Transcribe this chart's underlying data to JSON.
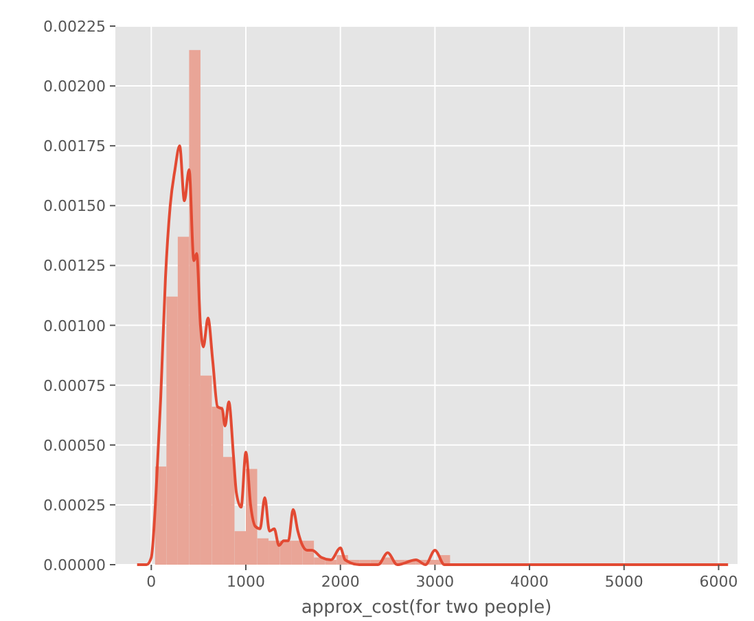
{
  "chart_data": {
    "type": "histogram",
    "xlabel": "approx_cost(for two people)",
    "grid": true,
    "xlim": [
      -380,
      6200
    ],
    "ylim": [
      0,
      0.00225
    ],
    "xticks": [
      0,
      1000,
      2000,
      3000,
      4000,
      5000,
      6000
    ],
    "yticks": [
      {
        "value": 0,
        "label": "0.00000"
      },
      {
        "value": 0.00025,
        "label": "0.00025"
      },
      {
        "value": 0.0005,
        "label": "0.00050"
      },
      {
        "value": 0.00075,
        "label": "0.00075"
      },
      {
        "value": 0.001,
        "label": "0.00100"
      },
      {
        "value": 0.00125,
        "label": "0.00125"
      },
      {
        "value": 0.0015,
        "label": "0.00150"
      },
      {
        "value": 0.00175,
        "label": "0.00175"
      },
      {
        "value": 0.002,
        "label": "0.00200"
      },
      {
        "value": 0.00225,
        "label": "0.00225"
      }
    ],
    "series": [
      {
        "color": "#e9a597",
        "bins": [
          40,
          160,
          280,
          400,
          520,
          640,
          760,
          880,
          1000,
          1120,
          1240,
          1360,
          1480,
          1600,
          1720,
          1840,
          1960,
          2080,
          2200,
          2320,
          2440,
          2560,
          2680,
          2800,
          2920,
          3040,
          3160,
          3280,
          3400,
          3520,
          3640,
          3760,
          3880,
          4000,
          4120,
          4240,
          4360,
          4480,
          4600,
          4720,
          4840,
          4960,
          5080,
          5200,
          5320,
          5440,
          5560,
          5680,
          5800,
          5920,
          6040
        ],
        "values": [
          0.00041,
          0.00112,
          0.00137,
          0.00215,
          0.00079,
          0.00066,
          0.00045,
          0.00014,
          0.0004,
          0.00011,
          0.0001,
          0.0001,
          0.0001,
          0.0001,
          3e-05,
          2e-05,
          4e-05,
          2e-05,
          2e-05,
          2e-05,
          3e-05,
          2e-05,
          2e-05,
          2e-05,
          2e-05,
          4e-05,
          0,
          0,
          0,
          0,
          0,
          0,
          0,
          0,
          0,
          0,
          0,
          0,
          0,
          0,
          0,
          0,
          0,
          0,
          0,
          0,
          0,
          0,
          0,
          0
        ]
      },
      {
        "type": "line",
        "color": "#e24a33",
        "x": [
          -150,
          -50,
          0,
          50,
          100,
          150,
          200,
          250,
          300,
          350,
          400,
          450,
          480,
          520,
          550,
          600,
          650,
          700,
          750,
          780,
          820,
          870,
          900,
          950,
          1000,
          1050,
          1100,
          1150,
          1200,
          1250,
          1300,
          1350,
          1400,
          1450,
          1500,
          1550,
          1600,
          1650,
          1700,
          1800,
          1900,
          2000,
          2050,
          2200,
          2400,
          2500,
          2600,
          2800,
          2900,
          3000,
          3100,
          3500,
          4000,
          4500,
          6100
        ],
        "values": [
          0,
          0,
          3e-05,
          0.0003,
          0.0007,
          0.0012,
          0.0015,
          0.00165,
          0.00175,
          0.00152,
          0.00165,
          0.00127,
          0.0013,
          0.001,
          0.00091,
          0.00103,
          0.00085,
          0.00066,
          0.00065,
          0.00058,
          0.00068,
          0.00045,
          0.0003,
          0.00024,
          0.00047,
          0.00025,
          0.00016,
          0.00015,
          0.00028,
          0.00014,
          0.00015,
          8e-05,
          0.0001,
          0.0001,
          0.00023,
          0.00014,
          8e-05,
          6e-05,
          6e-05,
          3e-05,
          2e-05,
          7e-05,
          2e-05,
          0,
          0,
          5e-05,
          0,
          2e-05,
          0,
          6e-05,
          0,
          0,
          0,
          0,
          0
        ]
      }
    ]
  }
}
